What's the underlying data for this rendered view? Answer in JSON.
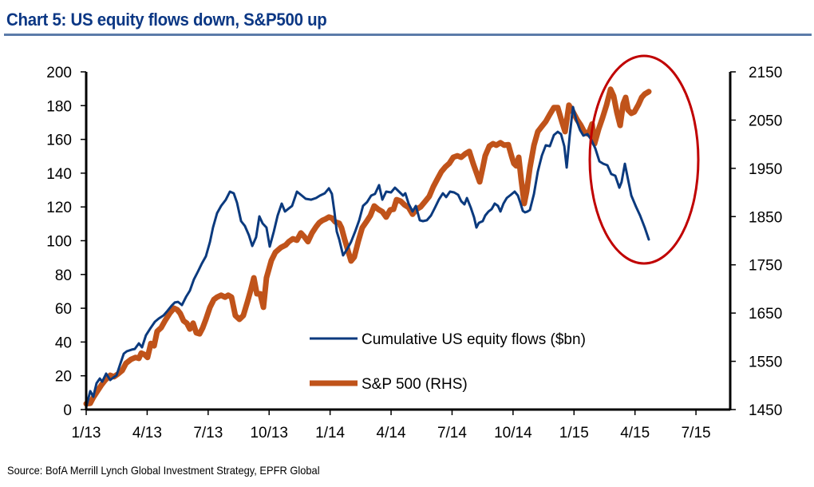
{
  "title": "Chart 5: US equity flows down, S&P500 up",
  "source": "Source: BofA Merrill Lynch Global Investment Strategy, EPFR Global",
  "colors": {
    "title": "#0b3784",
    "flows": "#0b3a7e",
    "sp500": "#c0531a",
    "annotation": "#c00000"
  },
  "chart_data": {
    "type": "line",
    "title": "Chart 5: US equity flows down, S&P500 up",
    "xlabel": "",
    "ylabel": "",
    "x_unit": "months since Jan 2013",
    "x_range": [
      0,
      30
    ],
    "x_ticks": [
      {
        "pos": 0,
        "label": "1/13"
      },
      {
        "pos": 3,
        "label": "4/13"
      },
      {
        "pos": 6,
        "label": "7/13"
      },
      {
        "pos": 9,
        "label": "10/13"
      },
      {
        "pos": 12,
        "label": "1/14"
      },
      {
        "pos": 15,
        "label": "4/14"
      },
      {
        "pos": 18,
        "label": "7/14"
      },
      {
        "pos": 21,
        "label": "10/14"
      },
      {
        "pos": 24,
        "label": "1/15"
      },
      {
        "pos": 27,
        "label": "4/15"
      },
      {
        "pos": 30,
        "label": "7/15"
      }
    ],
    "y_left": {
      "range": [
        0,
        200
      ],
      "ticks": [
        "0",
        "20",
        "40",
        "60",
        "80",
        "100",
        "120",
        "140",
        "160",
        "180",
        "200"
      ]
    },
    "y_right": {
      "range": [
        1450,
        2150
      ],
      "ticks": [
        "1450",
        "1550",
        "1650",
        "1750",
        "1850",
        "1950",
        "2050",
        "2150"
      ]
    },
    "grid": false,
    "legend_position": "center-bottom",
    "annotation": {
      "type": "ellipse",
      "description": "red circle highlighting divergence since Feb 2015"
    },
    "series": [
      {
        "name": "Cumulative US equity flows ($bn)",
        "axis": "left",
        "x": [
          0,
          0.2,
          0.35,
          0.51,
          0.67,
          0.79,
          0.98,
          1.18,
          1.33,
          1.49,
          1.69,
          1.85,
          2,
          2.24,
          2.39,
          2.59,
          2.75,
          2.94,
          3.14,
          3.38,
          3.57,
          3.81,
          4.01,
          4.2,
          4.36,
          4.52,
          4.71,
          4.91,
          5.1,
          5.3,
          5.5,
          5.69,
          5.89,
          6.09,
          6.24,
          6.44,
          6.64,
          6.87,
          7.07,
          7.26,
          7.42,
          7.62,
          7.81,
          8.01,
          8.17,
          8.36,
          8.52,
          8.68,
          8.87,
          9.03,
          9.23,
          9.42,
          9.62,
          9.78,
          9.97,
          10.13,
          10.37,
          10.56,
          10.8,
          11.07,
          11.31,
          11.5,
          11.74,
          11.94,
          12.09,
          12.21,
          12.33,
          12.45,
          12.64,
          12.84,
          13.03,
          13.23,
          13.43,
          13.62,
          13.82,
          14.02,
          14.21,
          14.41,
          14.57,
          14.76,
          15,
          15.19,
          15.39,
          15.59,
          15.7,
          15.86,
          16.06,
          16.22,
          16.41,
          16.57,
          16.76,
          16.96,
          17.16,
          17.35,
          17.55,
          17.71,
          17.9,
          18.1,
          18.3,
          18.45,
          18.61,
          18.73,
          18.92,
          19.08,
          19.2,
          19.32,
          19.51,
          19.63,
          19.79,
          19.95,
          20.1,
          20.26,
          20.38,
          20.53,
          20.69,
          20.89,
          21.08,
          21.24,
          21.36,
          21.48,
          21.59,
          21.71,
          21.83,
          22.03,
          22.22,
          22.42,
          22.61,
          22.81,
          23.01,
          23.2,
          23.36,
          23.52,
          23.64,
          23.79,
          23.95,
          24.11,
          24.3,
          24.46,
          24.66,
          24.85,
          25.05,
          25.25,
          25.44,
          25.64,
          25.83,
          26.03,
          26.23,
          26.34,
          26.5,
          26.66,
          26.82,
          27.05,
          27.25,
          27.48,
          27.68
        ],
        "values": [
          1.4,
          10.9,
          7.6,
          15.6,
          18.4,
          16.5,
          21.3,
          17.5,
          18.9,
          20.3,
          27.4,
          33.1,
          34.5,
          35.5,
          35.9,
          39.2,
          36.9,
          44,
          47.8,
          52,
          53.9,
          55.8,
          58.6,
          61.5,
          63.4,
          63.8,
          61.9,
          66.7,
          70.4,
          77.1,
          81.8,
          86.5,
          90.8,
          99.3,
          107.8,
          116.3,
          120.6,
          124.3,
          129.1,
          128.1,
          122.5,
          111.6,
          108.7,
          103.1,
          96.9,
          102.1,
          114.4,
          110.2,
          107.8,
          96.5,
          105.4,
          114.9,
          122,
          117.3,
          119.1,
          120.6,
          129.1,
          127.2,
          124.8,
          124.3,
          125.3,
          126.7,
          128.1,
          131,
          127.7,
          117.3,
          105.4,
          100.7,
          91.3,
          95,
          99.3,
          105.4,
          112.1,
          120.6,
          122.9,
          126.7,
          127.7,
          132.9,
          124.3,
          129.1,
          128.6,
          131.4,
          129.1,
          126.7,
          128.1,
          122,
          117.3,
          120.6,
          112.1,
          111.6,
          112.1,
          114.9,
          119.6,
          124.3,
          128.1,
          125.8,
          129.1,
          128.6,
          127.2,
          123.4,
          121.5,
          125.3,
          119.6,
          113.9,
          107.8,
          110.6,
          111.6,
          114.9,
          117.3,
          118.7,
          122,
          120.6,
          117.3,
          122,
          125.3,
          127.2,
          129.1,
          126.7,
          122.5,
          117.7,
          116.8,
          117.3,
          118.2,
          127.7,
          140.9,
          150.4,
          156.5,
          156,
          162.6,
          164.5,
          163.1,
          156,
          143.3,
          162.2,
          179.2,
          171.6,
          165.5,
          162.2,
          163.1,
          159.8,
          154.6,
          147,
          145.6,
          144.7,
          139.5,
          138.5,
          131.4,
          134.8,
          145.6,
          136.2,
          126.7,
          120.1,
          114.9,
          107.8,
          100.7
        ]
      },
      {
        "name": "S&P 500 (RHS)",
        "axis": "right",
        "x": [
          0,
          0.2,
          0.35,
          0.55,
          0.75,
          0.94,
          1.18,
          1.37,
          1.57,
          1.77,
          1.96,
          2.2,
          2.43,
          2.59,
          2.71,
          2.87,
          3.02,
          3.18,
          3.34,
          3.49,
          3.69,
          3.89,
          4.12,
          4.32,
          4.48,
          4.63,
          4.79,
          4.95,
          5.1,
          5.26,
          5.42,
          5.58,
          5.73,
          5.89,
          6.09,
          6.28,
          6.44,
          6.64,
          6.83,
          6.99,
          7.15,
          7.34,
          7.54,
          7.73,
          7.93,
          8.09,
          8.25,
          8.4,
          8.56,
          8.72,
          8.87,
          9.11,
          9.31,
          9.58,
          9.82,
          9.97,
          10.17,
          10.37,
          10.56,
          10.72,
          10.91,
          11.11,
          11.31,
          11.46,
          11.62,
          11.78,
          11.94,
          12.09,
          12.25,
          12.45,
          12.56,
          12.72,
          12.88,
          13.03,
          13.19,
          13.39,
          13.58,
          13.78,
          13.98,
          14.17,
          14.37,
          14.57,
          14.76,
          14.96,
          15.12,
          15.27,
          15.47,
          15.67,
          15.86,
          16.06,
          16.25,
          16.45,
          16.69,
          16.88,
          17.08,
          17.28,
          17.47,
          17.67,
          17.86,
          18.06,
          18.26,
          18.45,
          18.65,
          18.85,
          19.04,
          19.2,
          19.36,
          19.51,
          19.63,
          19.83,
          20.02,
          20.18,
          20.38,
          20.57,
          20.77,
          20.93,
          21.04,
          21.16,
          21.28,
          21.4,
          21.55,
          21.67,
          21.83,
          22.03,
          22.22,
          22.42,
          22.61,
          22.81,
          23.01,
          23.2,
          23.4,
          23.56,
          23.75,
          23.95,
          24.15,
          24.34,
          24.5,
          24.7,
          24.89,
          25.01,
          25.21,
          25.4,
          25.6,
          25.8,
          25.95,
          26.11,
          26.27,
          26.42,
          26.54,
          26.66,
          26.82,
          26.97,
          27.17,
          27.33,
          27.48,
          27.68
        ],
        "values": [
          1462,
          1463,
          1475,
          1488,
          1501,
          1511,
          1521,
          1518,
          1524,
          1531,
          1546,
          1554,
          1558,
          1556,
          1567,
          1564,
          1558,
          1587,
          1582,
          1612,
          1620,
          1635,
          1650,
          1660,
          1657,
          1649,
          1634,
          1629,
          1617,
          1629,
          1609,
          1607,
          1619,
          1637,
          1662,
          1678,
          1683,
          1687,
          1683,
          1687,
          1683,
          1645,
          1637,
          1645,
          1673,
          1697,
          1723,
          1690,
          1690,
          1662,
          1723,
          1759,
          1776,
          1786,
          1791,
          1798,
          1804,
          1801,
          1816,
          1809,
          1798,
          1816,
          1829,
          1837,
          1842,
          1845,
          1849,
          1847,
          1839,
          1836,
          1827,
          1802,
          1779,
          1758,
          1766,
          1799,
          1827,
          1839,
          1852,
          1872,
          1865,
          1860,
          1849,
          1864,
          1865,
          1885,
          1882,
          1874,
          1869,
          1855,
          1865,
          1870,
          1882,
          1892,
          1912,
          1928,
          1943,
          1953,
          1960,
          1973,
          1976,
          1973,
          1980,
          1985,
          1960,
          1941,
          1922,
          1951,
          1976,
          1996,
          2001,
          1998,
          2003,
          1998,
          1999,
          1975,
          1960,
          1955,
          1973,
          1927,
          1877,
          1902,
          1951,
          1998,
          2026,
          2037,
          2047,
          2062,
          2076,
          2076,
          2047,
          2026,
          2081,
          2067,
          2051,
          2039,
          2026,
          2021,
          2042,
          2001,
          2031,
          2054,
          2081,
          2114,
          2100,
          2066,
          2039,
          2084,
          2097,
          2071,
          2064,
          2067,
          2082,
          2097,
          2104,
          2109
        ]
      }
    ]
  }
}
